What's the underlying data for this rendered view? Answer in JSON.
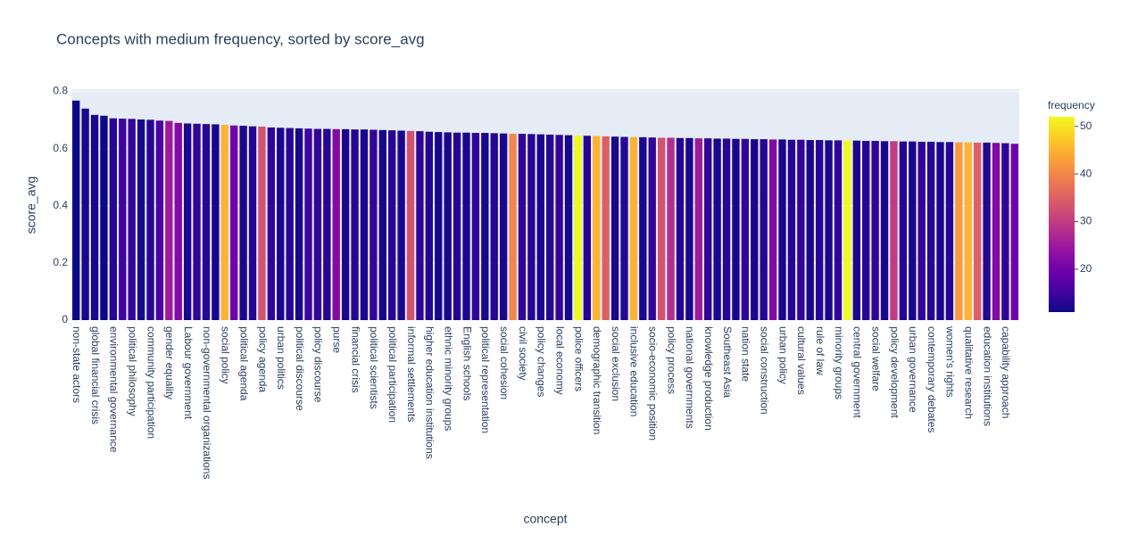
{
  "chart_data": {
    "type": "bar",
    "title": "Concepts with medium frequency, sorted by score_avg",
    "x_label": "concept",
    "y_label": "score_avg",
    "categories": [
      "non-state actors",
      null,
      "global financial crisis",
      null,
      "environmental governance",
      null,
      "political philosophy",
      null,
      "community participation",
      null,
      "gender equality",
      null,
      "Labour government",
      null,
      "non-governmental organizations",
      null,
      "social policy",
      null,
      "political agenda",
      null,
      "policy agenda",
      null,
      "urban politics",
      null,
      "political discourse",
      null,
      "policy discourse",
      null,
      "purse",
      null,
      "financial crisis",
      null,
      "political scientists",
      null,
      "political participation",
      null,
      "informal settlements",
      null,
      "higher education institutions",
      null,
      "ethnic minority groups",
      null,
      "English schools",
      null,
      "political representation",
      null,
      "social cohesion",
      null,
      "civil society",
      null,
      "policy changes",
      null,
      "local economy",
      null,
      "police officers",
      null,
      "demographic transition",
      null,
      "social exclusion",
      null,
      "inclusive education",
      null,
      "socio-economic position",
      null,
      "policy process",
      null,
      "national governments",
      null,
      "knowledge production",
      null,
      "Southeast Asia",
      null,
      "nation state",
      null,
      "social construction",
      null,
      "urban policy",
      null,
      "cultural values",
      null,
      "rule of law",
      null,
      "minority groups",
      null,
      "central government",
      null,
      "social welfare",
      null,
      "policy development",
      null,
      "urban governance",
      null,
      "contemporary debates",
      null,
      "women's rights",
      null,
      "qualitative research",
      null,
      "education institutions",
      null,
      "capability approach",
      null
    ],
    "values": [
      0.768,
      0.74,
      0.718,
      0.715,
      0.706,
      0.705,
      0.704,
      0.702,
      0.701,
      0.698,
      0.697,
      0.69,
      0.688,
      0.687,
      0.686,
      0.685,
      0.683,
      0.681,
      0.68,
      0.678,
      0.677,
      0.674,
      0.673,
      0.672,
      0.671,
      0.67,
      0.669,
      0.669,
      0.668,
      0.668,
      0.667,
      0.667,
      0.666,
      0.665,
      0.664,
      0.663,
      0.662,
      0.661,
      0.659,
      0.658,
      0.657,
      0.656,
      0.656,
      0.655,
      0.655,
      0.654,
      0.653,
      0.652,
      0.652,
      0.651,
      0.65,
      0.649,
      0.648,
      0.647,
      0.646,
      0.645,
      0.644,
      0.643,
      0.642,
      0.641,
      0.64,
      0.64,
      0.639,
      0.638,
      0.638,
      0.637,
      0.637,
      0.636,
      0.636,
      0.635,
      0.635,
      0.634,
      0.634,
      0.633,
      0.633,
      0.632,
      0.632,
      0.631,
      0.631,
      0.63,
      0.63,
      0.629,
      0.629,
      0.628,
      0.628,
      0.627,
      0.627,
      0.626,
      0.626,
      0.625,
      0.625,
      0.624,
      0.624,
      0.623,
      0.623,
      0.622,
      0.622,
      0.621,
      0.621,
      0.62,
      0.619,
      0.617
    ],
    "frequency": [
      11,
      12,
      12,
      11,
      13,
      15,
      14,
      12,
      13,
      16,
      25,
      22,
      12,
      14,
      13,
      12,
      45,
      20,
      12,
      13,
      33,
      14,
      12,
      13,
      12,
      15,
      14,
      13,
      22,
      12,
      13,
      12,
      14,
      12,
      13,
      12,
      33,
      14,
      13,
      12,
      12,
      13,
      12,
      14,
      12,
      13,
      12,
      40,
      14,
      13,
      12,
      13,
      14,
      12,
      52,
      13,
      45,
      35,
      12,
      13,
      45,
      12,
      14,
      33,
      28,
      13,
      12,
      25,
      14,
      12,
      13,
      12,
      14,
      12,
      13,
      22,
      12,
      13,
      14,
      12,
      13,
      12,
      14,
      52,
      12,
      13,
      14,
      12,
      30,
      13,
      12,
      14,
      13,
      12,
      13,
      42,
      45,
      35,
      13,
      22,
      14,
      20
    ],
    "colorscale": [
      "#0d0887",
      "#46039f",
      "#7201a8",
      "#9c179e",
      "#bd3786",
      "#d8576b",
      "#ed7953",
      "#fb9f3a",
      "#fdca26",
      "#f0f921"
    ],
    "colorbar_title": "frequency",
    "clim": [
      11,
      52
    ],
    "cticks": [
      20,
      30,
      40,
      50
    ],
    "ylim": [
      0,
      0.808
    ],
    "yticks": [
      0,
      0.2,
      0.4,
      0.6,
      0.8
    ],
    "grid": true
  }
}
